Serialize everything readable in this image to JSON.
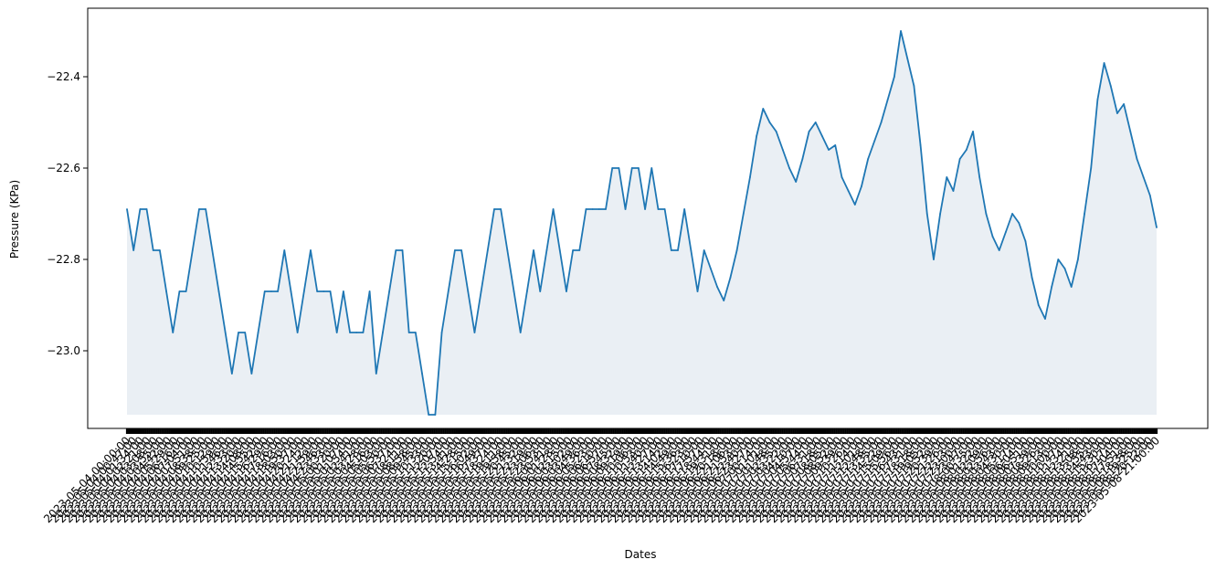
{
  "chart_data": {
    "type": "area",
    "title": "",
    "xlabel": "Dates",
    "ylabel": "Pressure (KPa)",
    "ylim": [
      -23.17,
      -22.25
    ],
    "yticks": [
      -23.0,
      -22.8,
      -22.6,
      -22.4
    ],
    "ytick_labels": [
      "−23.0",
      "−22.8",
      "−22.6",
      "−22.4"
    ],
    "fill_baseline": -23.14,
    "grid": false,
    "legend": "none",
    "colors": {
      "line": "#1f77b4",
      "fill": "#dfe7ee"
    },
    "x_first_label": "2023-05-04 00:00:00",
    "x_last_label": "2023-05-08 21:00:00",
    "series": [
      {
        "x_start": "2023-05-04 00:00:00",
        "x_end": "2023-05-08 21:00:00",
        "values": [
          -22.69,
          -22.78,
          -22.69,
          -22.69,
          -22.78,
          -22.78,
          -22.87,
          -22.96,
          -22.87,
          -22.87,
          -22.78,
          -22.69,
          -22.69,
          -22.78,
          -22.87,
          -22.96,
          -23.05,
          -22.96,
          -22.96,
          -23.05,
          -22.96,
          -22.87,
          -22.87,
          -22.87,
          -22.78,
          -22.87,
          -22.96,
          -22.87,
          -22.78,
          -22.87,
          -22.87,
          -22.87,
          -22.96,
          -22.87,
          -22.96,
          -22.96,
          -22.96,
          -22.87,
          -23.05,
          -22.96,
          -22.87,
          -22.78,
          -22.78,
          -22.96,
          -22.96,
          -23.05,
          -23.14,
          -23.14,
          -22.96,
          -22.87,
          -22.78,
          -22.78,
          -22.87,
          -22.96,
          -22.87,
          -22.78,
          -22.69,
          -22.69,
          -22.78,
          -22.87,
          -22.96,
          -22.87,
          -22.78,
          -22.87,
          -22.78,
          -22.69,
          -22.78,
          -22.87,
          -22.78,
          -22.78,
          -22.69,
          -22.69,
          -22.69,
          -22.69,
          -22.6,
          -22.6,
          -22.69,
          -22.6,
          -22.6,
          -22.69,
          -22.6,
          -22.69,
          -22.69,
          -22.78,
          -22.78,
          -22.69,
          -22.78,
          -22.87,
          -22.78,
          -22.82,
          -22.86,
          -22.89,
          -22.84,
          -22.78,
          -22.7,
          -22.62,
          -22.53,
          -22.47,
          -22.5,
          -22.52,
          -22.56,
          -22.6,
          -22.63,
          -22.58,
          -22.52,
          -22.5,
          -22.53,
          -22.56,
          -22.55,
          -22.62,
          -22.65,
          -22.68,
          -22.64,
          -22.58,
          -22.54,
          -22.5,
          -22.45,
          -22.4,
          -22.3,
          -22.36,
          -22.42,
          -22.55,
          -22.7,
          -22.8,
          -22.7,
          -22.62,
          -22.65,
          -22.58,
          -22.56,
          -22.52,
          -22.62,
          -22.7,
          -22.75,
          -22.78,
          -22.74,
          -22.7,
          -22.72,
          -22.76,
          -22.84,
          -22.9,
          -22.93,
          -22.86,
          -22.8,
          -22.82,
          -22.86,
          -22.8,
          -22.7,
          -22.6,
          -22.45,
          -22.37,
          -22.42,
          -22.48,
          -22.46,
          -22.52,
          -22.58,
          -22.62,
          -22.66,
          -22.73
        ]
      }
    ]
  }
}
